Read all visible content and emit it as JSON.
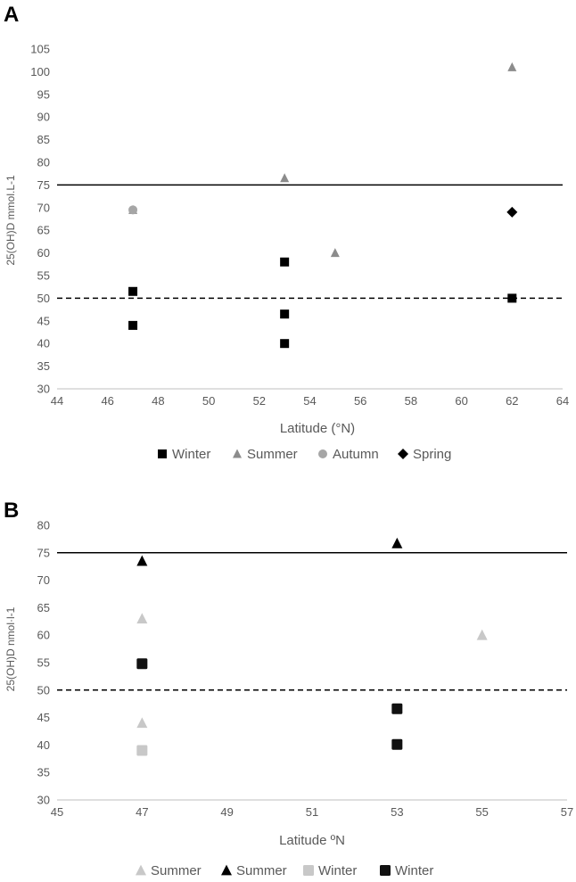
{
  "chart_data": [
    {
      "panel": "A",
      "type": "scatter",
      "xlabel": "Latitude (°N)",
      "ylabel": "25(OH)D mmol.L-1",
      "xlim": [
        44,
        64
      ],
      "ylim": [
        30,
        105
      ],
      "xticks": [
        44,
        46,
        48,
        50,
        52,
        54,
        56,
        58,
        60,
        62,
        64
      ],
      "yticks": [
        30,
        35,
        40,
        45,
        50,
        55,
        60,
        65,
        70,
        75,
        80,
        85,
        90,
        95,
        100,
        105
      ],
      "reference_lines": [
        {
          "y": 75,
          "style": "solid"
        },
        {
          "y": 50,
          "style": "dashed"
        }
      ],
      "series": [
        {
          "name": "Winter",
          "marker": "square",
          "color": "#000000",
          "points": [
            [
              47,
              51.5
            ],
            [
              47,
              44
            ],
            [
              53,
              58
            ],
            [
              53,
              46.5
            ],
            [
              53,
              40
            ],
            [
              62,
              50
            ]
          ]
        },
        {
          "name": "Summer",
          "marker": "triangle",
          "color": "#8c8c8c",
          "points": [
            [
              47,
              69.5
            ],
            [
              53,
              76.5
            ],
            [
              55,
              60
            ],
            [
              62,
              101
            ]
          ]
        },
        {
          "name": "Autumn",
          "marker": "circle",
          "color": "#a6a6a6",
          "points": [
            [
              47,
              69.5
            ]
          ]
        },
        {
          "name": "Spring",
          "marker": "diamond",
          "color": "#000000",
          "points": [
            [
              62,
              69
            ]
          ]
        }
      ]
    },
    {
      "panel": "B",
      "type": "scatter",
      "xlabel": "Latitude ºN",
      "ylabel": "25(OH)D nmol·l-1",
      "xlim": [
        45,
        57
      ],
      "ylim": [
        30,
        80
      ],
      "xticks": [
        45,
        47,
        49,
        51,
        53,
        55,
        57
      ],
      "yticks": [
        30,
        35,
        40,
        45,
        50,
        55,
        60,
        65,
        70,
        75,
        80
      ],
      "reference_lines": [
        {
          "y": 75,
          "style": "solid"
        },
        {
          "y": 50,
          "style": "dashed"
        }
      ],
      "series": [
        {
          "name": "Summer",
          "marker": "triangle",
          "color": "#c8c8c8",
          "points": [
            [
              47,
              63
            ],
            [
              47,
              44
            ],
            [
              55,
              60
            ]
          ]
        },
        {
          "name": "Summer",
          "marker": "triangle",
          "color": "#000000",
          "points": [
            [
              47,
              73.5
            ],
            [
              53,
              76.7
            ]
          ]
        },
        {
          "name": "Winter",
          "marker": "square",
          "color": "#c8c8c8",
          "points": [
            [
              47,
              39
            ]
          ]
        },
        {
          "name": "Winter",
          "marker": "square",
          "color": "#111111",
          "points": [
            [
              47,
              54.8
            ],
            [
              53,
              46.6
            ],
            [
              53,
              40.1
            ]
          ]
        }
      ]
    }
  ]
}
